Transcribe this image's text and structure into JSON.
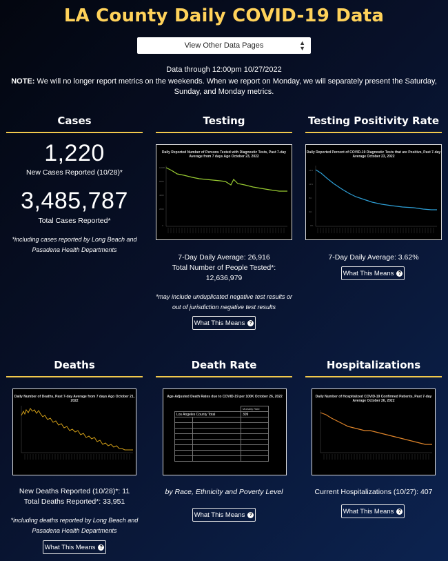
{
  "title": "LA County Daily COVID-19 Data",
  "nav_select": {
    "value": "View Other Data Pages"
  },
  "data_through": "Data through 12:00pm 10/27/2022",
  "note": {
    "label": "NOTE:",
    "text": " We will no longer report metrics on the weekends. When we report on Monday, we will separately present the Saturday, Sunday, and Monday metrics."
  },
  "what_this_means": "What This Means",
  "cases": {
    "title": "Cases",
    "new_cases": "1,220",
    "new_cases_label": "New Cases Reported (10/28)*",
    "total_cases": "3,485,787",
    "total_cases_label": "Total Cases Reported*",
    "footnote": "*including cases reported by Long Beach and Pasadena Health Departments"
  },
  "testing": {
    "title": "Testing",
    "chart_title": "Daily Reported Number of Persons Tested with Diagnostic Tests, Past 7-day Average from 7 days Ago October 23, 2022",
    "daily_avg": "7-Day Daily Average: 26,916",
    "total_label": "Total Number of People Tested*:",
    "total_value": "12,636,979",
    "footnote": "*may include unduplicated negative test results or out of jurisdiction negative test results"
  },
  "positivity": {
    "title": "Testing Positivity Rate",
    "chart_title": "Daily Reported Percent of COVID-19 Diagnostic Tests that are Positive, Past 7-day Average October 23, 2022",
    "daily_avg": "7-Day Daily Average: 3.62%"
  },
  "deaths": {
    "title": "Deaths",
    "chart_title": "Daily Number of Deaths, Past 7-day Average from 7 days Ago October 21, 2022",
    "new_deaths": "New Deaths Reported (10/28)*: 11",
    "total_deaths": "Total Deaths Reported*: 33,951",
    "footnote": "*including deaths reported by Long Beach and Pasadena Health Departments"
  },
  "death_rate": {
    "title": "Death Rate",
    "chart_title": "Age-Adjusted Death Rates due to COVID-19 per 100K October 26, 2022",
    "table_header": "Mortality Rate",
    "county_label": "Los Angeles County Total",
    "county_value": "309",
    "caption": "by Race, Ethnicity and Poverty Level"
  },
  "hospitalizations": {
    "title": "Hospitalizations",
    "chart_title": "Daily Number of Hospitalized COVID-19 Confirmed Patients, Past 7-day Average October 26, 2022",
    "current": "Current Hospitalizations (10/27): 407"
  },
  "colors": {
    "accent": "#ffd25a",
    "rule": "#f2c94c",
    "testing_line": "#9acd32",
    "positivity_line": "#2e9fd6",
    "deaths_line": "#d4a017",
    "hosp_line": "#e0852a"
  }
}
